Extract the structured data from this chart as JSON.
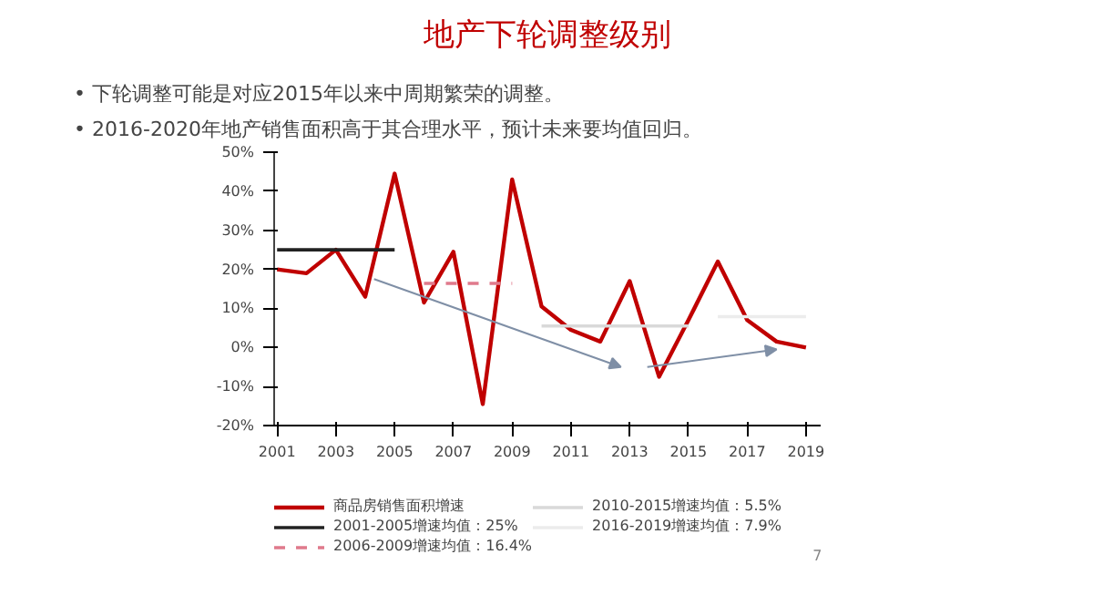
{
  "chart_data": {
    "type": "line",
    "title": "地产下轮调整级别",
    "subtitle": "• 下轮调整可能是对应2015年以来中周期繁荣的调整。\n• 2016-2020年地产销售面积高于其合理水平，预计未来要均值回归。",
    "annotations": [
      "7"
    ],
    "x": [
      2001,
      2002,
      2003,
      2004,
      2005,
      2006,
      2007,
      2008,
      2009,
      2010,
      2011,
      2012,
      2013,
      2014,
      2015,
      2016,
      2017,
      2018,
      2019
    ],
    "series": [
      {
        "name": "商品房销售面积增速",
        "color": "#c00000",
        "values": [
          20,
          19,
          25,
          13,
          44.5,
          11.5,
          24.5,
          -14.5,
          43,
          10.5,
          4.5,
          1.5,
          17,
          -7.5,
          7,
          22,
          7,
          1.5,
          0
        ]
      },
      {
        "name": "2001-2005增速均值：25%",
        "color": "#222222",
        "x": [
          2001,
          2005
        ],
        "values": [
          25,
          25
        ]
      },
      {
        "name": "2006-2009增速均值：16.4%",
        "color": "#e07a8c",
        "x": [
          2006,
          2009
        ],
        "values": [
          16.4,
          16.4
        ],
        "line_style": "dashed"
      },
      {
        "name": "2010-2015增速均值：5.5%",
        "color": "#d9d9d9",
        "x": [
          2010,
          2015
        ],
        "values": [
          5.5,
          5.5
        ]
      },
      {
        "name": "2016-2019增速均值：7.9%",
        "color": "#ececec",
        "x": [
          2016,
          2019
        ],
        "values": [
          7.9,
          7.9
        ]
      }
    ],
    "xlim": [
      2000.9,
      2019.5
    ],
    "xticks": [
      2001,
      2003,
      2005,
      2007,
      2009,
      2011,
      2013,
      2015,
      2017,
      2019
    ],
    "ylim": [
      -20,
      50
    ],
    "yticks": [
      {
        "value": -20,
        "label": "-20%"
      },
      {
        "value": -10,
        "label": "-10%"
      },
      {
        "value": 0,
        "label": "0%"
      },
      {
        "value": 10,
        "label": "10%"
      },
      {
        "value": 20,
        "label": "20%"
      },
      {
        "value": 30,
        "label": "30%"
      },
      {
        "value": 40,
        "label": "40%"
      },
      {
        "value": 50,
        "label": "50%"
      }
    ],
    "grid": false,
    "legend": "bottom",
    "marker": "none",
    "line_style": "solid"
  }
}
